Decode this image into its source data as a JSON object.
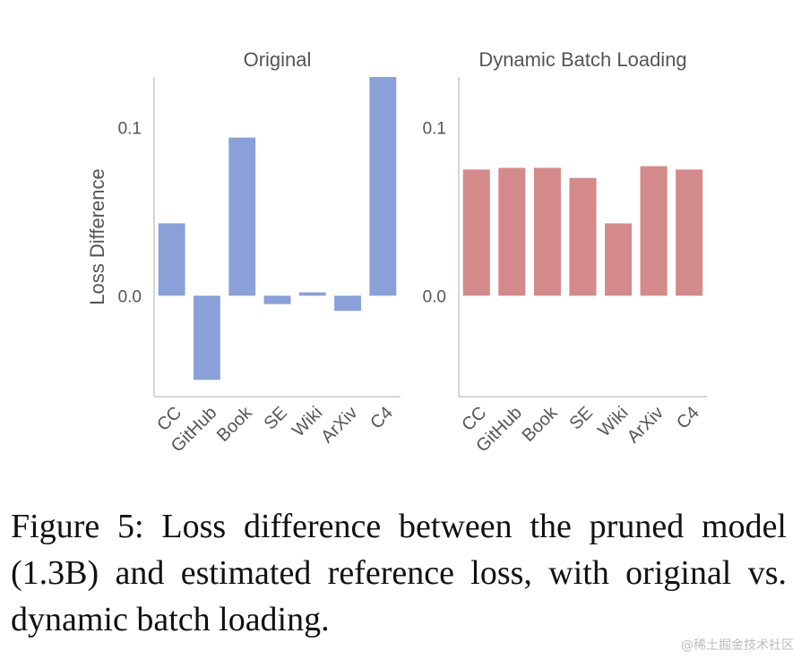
{
  "chart_data": [
    {
      "type": "bar",
      "title": "Original",
      "ylabel": "Loss Difference",
      "categories": [
        "CC",
        "GitHub",
        "Book",
        "SE",
        "Wiki",
        "ArXiv",
        "C4"
      ],
      "values": [
        0.043,
        -0.05,
        0.094,
        -0.005,
        0.002,
        -0.009,
        0.13
      ],
      "yticks": [
        0.0,
        0.1
      ],
      "ytick_labels": [
        "0.0",
        "0.1"
      ],
      "ylim": [
        -0.06,
        0.13
      ],
      "color": "#8aa0d8"
    },
    {
      "type": "bar",
      "title": "Dynamic Batch Loading",
      "categories": [
        "CC",
        "GitHub",
        "Book",
        "SE",
        "Wiki",
        "ArXiv",
        "C4"
      ],
      "values": [
        0.075,
        0.076,
        0.076,
        0.07,
        0.043,
        0.077,
        0.075
      ],
      "yticks": [
        0.0,
        0.1
      ],
      "ytick_labels": [
        "0.0",
        "0.1"
      ],
      "ylim": [
        -0.06,
        0.13
      ],
      "color": "#d48a8a"
    }
  ],
  "caption": "Figure 5: Loss difference between the pruned model (1.3B) and estimated reference loss, with original vs. dynamic batch loading.",
  "watermark": "@稀土掘金技术社区"
}
